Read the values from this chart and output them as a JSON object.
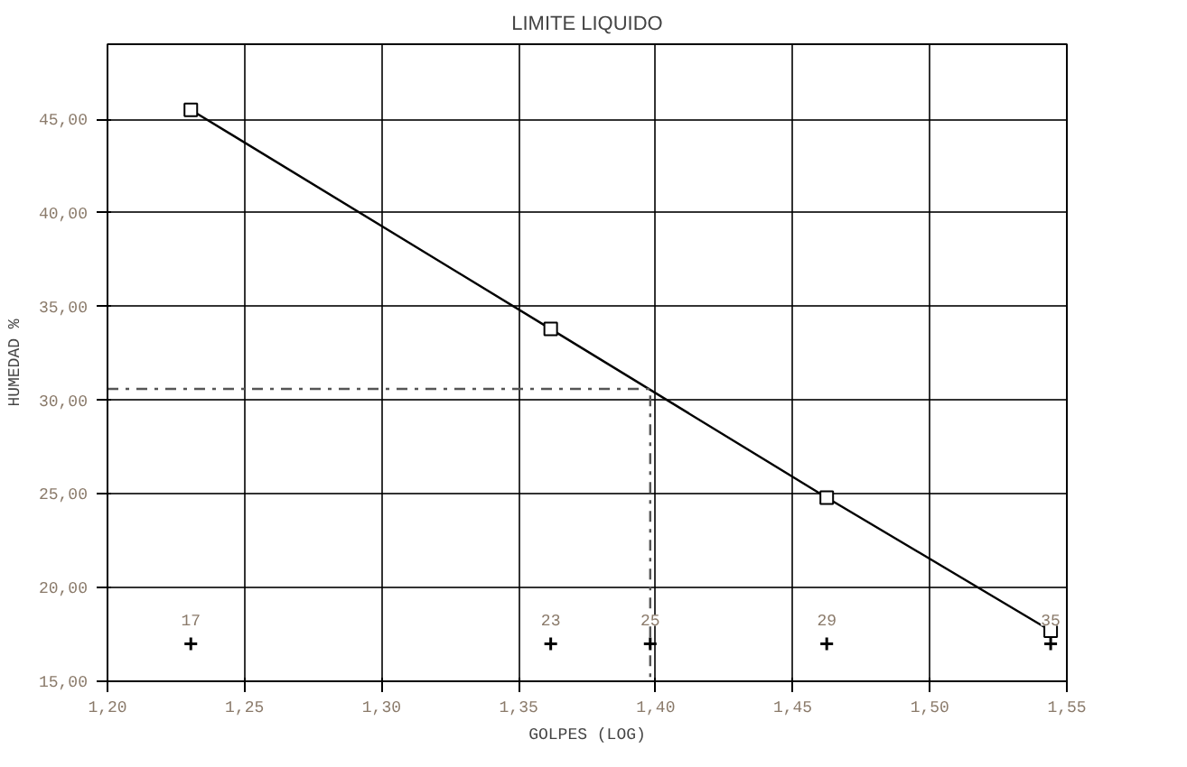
{
  "chart_data": {
    "type": "line",
    "title": "LIMITE LIQUIDO",
    "xlabel": "GOLPES (LOG)",
    "ylabel": "HUMEDAD %",
    "xlim": [
      1.2,
      1.55
    ],
    "ylim": [
      15,
      49
    ],
    "xticks": [
      {
        "value": 1.2,
        "label": "1,20"
      },
      {
        "value": 1.25,
        "label": "1,25"
      },
      {
        "value": 1.3,
        "label": "1,30"
      },
      {
        "value": 1.35,
        "label": "1,35"
      },
      {
        "value": 1.4,
        "label": "1,40"
      },
      {
        "value": 1.45,
        "label": "1,45"
      },
      {
        "value": 1.5,
        "label": "1,50"
      },
      {
        "value": 1.55,
        "label": "1,55"
      }
    ],
    "yticks": [
      {
        "value": 15,
        "label": "15,00"
      },
      {
        "value": 20,
        "label": "20,00"
      },
      {
        "value": 25,
        "label": "25,00"
      },
      {
        "value": 30,
        "label": "30,00"
      },
      {
        "value": 35,
        "label": "35,00"
      },
      {
        "value": 40,
        "label": "40,00"
      },
      {
        "value": 45,
        "label": "45,00"
      }
    ],
    "grid": true,
    "series": [
      {
        "marker": "square",
        "line_style": "solid",
        "color": "#000000",
        "x": [
          1.2304,
          1.3617,
          1.4624,
          1.5441
        ],
        "values": [
          45.5,
          33.8,
          24.8,
          17.7
        ]
      },
      {
        "type": "line",
        "marker": "none",
        "line_style": "dashed",
        "color": "#555555",
        "x": [
          1.2,
          1.398,
          1.398
        ],
        "values": [
          30.6,
          30.6,
          15
        ]
      },
      {
        "type": "scatter",
        "marker": "cross",
        "color": "#000000",
        "x": [
          1.2304,
          1.3617,
          1.398,
          1.4624,
          1.5441
        ],
        "values": [
          17,
          17,
          17,
          17,
          17
        ]
      }
    ],
    "annotations": [
      {
        "text": "17",
        "x": 1.2304,
        "y": 17
      },
      {
        "text": "23",
        "x": 1.3617,
        "y": 17
      },
      {
        "text": "25",
        "x": 1.398,
        "y": 17
      },
      {
        "text": "29",
        "x": 1.4624,
        "y": 17
      },
      {
        "text": "35",
        "x": 1.5441,
        "y": 17
      }
    ]
  }
}
